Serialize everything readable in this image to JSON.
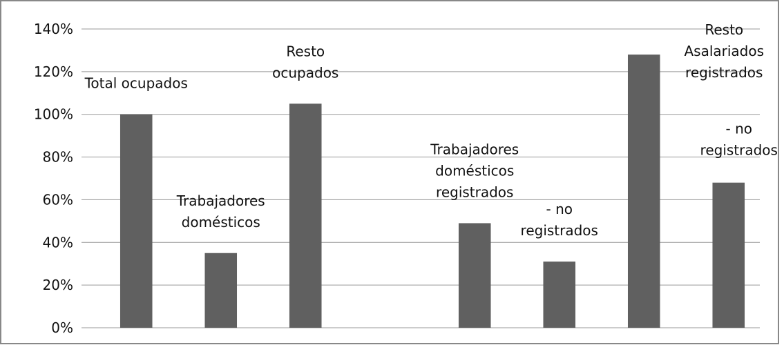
{
  "chart_data": {
    "type": "bar",
    "categories": [
      [
        "Total ocupados"
      ],
      [
        "Trabajadores",
        "domésticos"
      ],
      [
        "Resto",
        "ocupados"
      ],
      null,
      [
        "Trabajadores",
        "domésticos",
        "registrados"
      ],
      [
        "- no",
        "registrados"
      ],
      [
        "Resto",
        "Asalariados",
        "registrados"
      ],
      [
        "- no",
        "registrados"
      ]
    ],
    "values": [
      100,
      35,
      105,
      null,
      49,
      31,
      128,
      68
    ],
    "color": "#606060",
    "ylim": [
      0,
      140
    ],
    "yticks": [
      {
        "value": 0,
        "label": "0%"
      },
      {
        "value": 20,
        "label": "20%"
      },
      {
        "value": 40,
        "label": "40%"
      },
      {
        "value": 60,
        "label": "60%"
      },
      {
        "value": 80,
        "label": "80%"
      },
      {
        "value": 100,
        "label": "100%"
      },
      {
        "value": 120,
        "label": "120%"
      },
      {
        "value": 140,
        "label": "140%"
      }
    ],
    "grid": true
  }
}
